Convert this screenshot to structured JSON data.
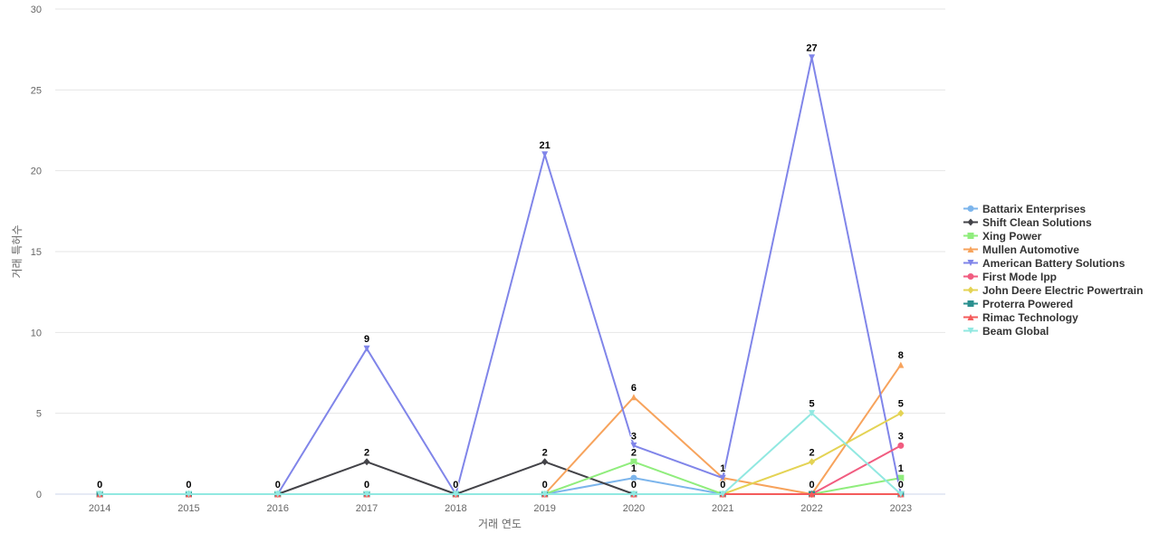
{
  "chart_data": {
    "type": "line",
    "xlabel": "거래 연도",
    "ylabel": "거래 특허수",
    "x": [
      "2014",
      "2015",
      "2016",
      "2017",
      "2018",
      "2019",
      "2020",
      "2021",
      "2022",
      "2023"
    ],
    "ylim": [
      0,
      30
    ],
    "yticks": [
      0,
      5,
      10,
      15,
      20,
      25,
      30
    ],
    "grid": true,
    "legend_position": "right",
    "series": [
      {
        "name": "Battarix Enterprises",
        "color": "#7cb5ec",
        "marker": "circle",
        "values": [
          0,
          0,
          0,
          0,
          0,
          0,
          1,
          0,
          0,
          0
        ]
      },
      {
        "name": "Shift Clean Solutions",
        "color": "#434348",
        "marker": "diamond",
        "values": [
          0,
          0,
          0,
          2,
          0,
          2,
          0,
          0,
          0,
          0
        ]
      },
      {
        "name": "Xing Power",
        "color": "#90ed7d",
        "marker": "square",
        "values": [
          0,
          0,
          0,
          0,
          0,
          0,
          2,
          0,
          0,
          1
        ]
      },
      {
        "name": "Mullen Automotive",
        "color": "#f7a35c",
        "marker": "triangle",
        "values": [
          0,
          0,
          0,
          0,
          0,
          0,
          6,
          1,
          0,
          8
        ]
      },
      {
        "name": "American Battery Solutions",
        "color": "#8085e9",
        "marker": "triangle-down",
        "values": [
          0,
          0,
          0,
          9,
          0,
          21,
          3,
          1,
          27,
          0
        ]
      },
      {
        "name": "First Mode Ipp",
        "color": "#f15c80",
        "marker": "circle",
        "values": [
          0,
          0,
          0,
          0,
          0,
          0,
          0,
          0,
          0,
          3
        ]
      },
      {
        "name": "John Deere Electric Powertrain",
        "color": "#e4d354",
        "marker": "diamond",
        "values": [
          0,
          0,
          0,
          0,
          0,
          0,
          0,
          0,
          2,
          5
        ]
      },
      {
        "name": "Proterra Powered",
        "color": "#2b908f",
        "marker": "square",
        "values": [
          0,
          0,
          0,
          0,
          0,
          0,
          0,
          0,
          0,
          0
        ]
      },
      {
        "name": "Rimac Technology",
        "color": "#f45b5b",
        "marker": "triangle",
        "values": [
          0,
          0,
          0,
          0,
          0,
          0,
          0,
          0,
          0,
          0
        ]
      },
      {
        "name": "Beam Global",
        "color": "#91e8e1",
        "marker": "triangle-down",
        "values": [
          0,
          0,
          0,
          0,
          0,
          0,
          0,
          0,
          5,
          0
        ]
      }
    ],
    "data_labels": [
      {
        "x": "2014",
        "value": 0
      },
      {
        "x": "2015",
        "value": 0
      },
      {
        "x": "2016",
        "value": 0
      },
      {
        "x": "2017",
        "value": 9
      },
      {
        "x": "2017",
        "value": 2
      },
      {
        "x": "2017",
        "value": 0
      },
      {
        "x": "2018",
        "value": 0
      },
      {
        "x": "2019",
        "value": 21
      },
      {
        "x": "2019",
        "value": 2
      },
      {
        "x": "2019",
        "value": 0
      },
      {
        "x": "2020",
        "value": 6
      },
      {
        "x": "2020",
        "value": 3
      },
      {
        "x": "2020",
        "value": 2
      },
      {
        "x": "2020",
        "value": 1
      },
      {
        "x": "2020",
        "value": 0
      },
      {
        "x": "2021",
        "value": 1
      },
      {
        "x": "2021",
        "value": 0
      },
      {
        "x": "2022",
        "value": 27
      },
      {
        "x": "2022",
        "value": 5
      },
      {
        "x": "2022",
        "value": 2
      },
      {
        "x": "2022",
        "value": 0
      },
      {
        "x": "2023",
        "value": 8
      },
      {
        "x": "2023",
        "value": 5
      },
      {
        "x": "2023",
        "value": 3
      },
      {
        "x": "2023",
        "value": 1
      },
      {
        "x": "2023",
        "value": 0
      }
    ]
  }
}
